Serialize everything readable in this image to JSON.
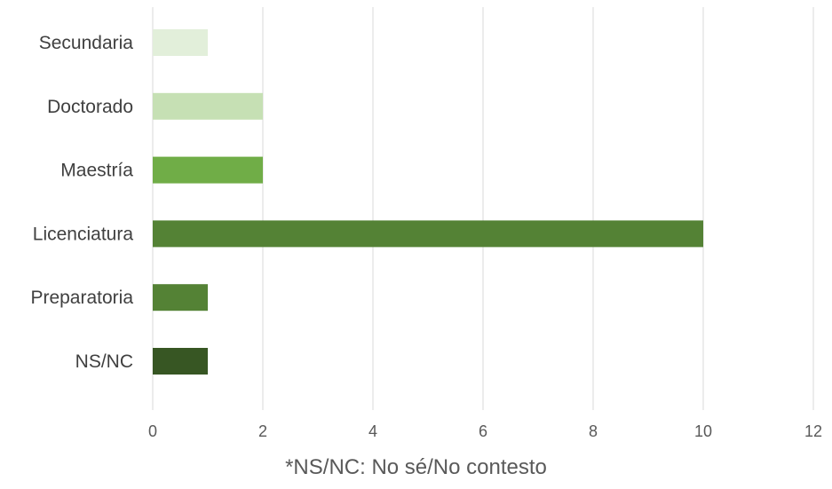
{
  "chart_data": {
    "type": "bar",
    "orientation": "horizontal",
    "categories": [
      "Secundaria",
      "Doctorado",
      "Maestría",
      "Licenciatura",
      "Preparatoria",
      "NS/NC"
    ],
    "values": [
      1,
      2,
      2,
      10,
      1,
      1
    ],
    "colors": [
      "#e2efda",
      "#c6e0b4",
      "#70ad47",
      "#548235",
      "#548235",
      "#375623"
    ],
    "x_ticks": [
      0,
      2,
      4,
      6,
      8,
      10,
      12
    ],
    "xlim": [
      0,
      12
    ],
    "grid": true,
    "legend": "none"
  },
  "footnote": "*NS/NC: No sé/No contesto"
}
